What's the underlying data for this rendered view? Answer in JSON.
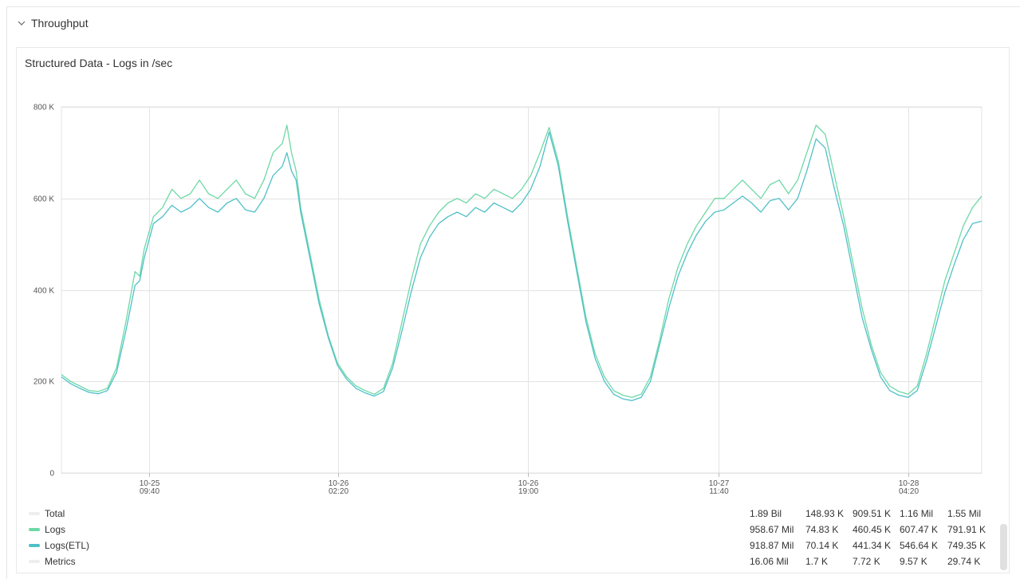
{
  "section": {
    "title": "Throughput"
  },
  "panel": {
    "title": "Structured Data - Logs in /sec"
  },
  "legend": {
    "rows": [
      {
        "label": "Total",
        "color": "#eeeeee",
        "values": [
          "1.89 Bil",
          "148.93 K",
          "909.51 K",
          "1.16 Mil",
          "1.55 Mil"
        ]
      },
      {
        "label": "Logs",
        "color": "#6dd8a6",
        "values": [
          "958.67 Mil",
          "74.83 K",
          "460.45 K",
          "607.47 K",
          "791.91 K"
        ]
      },
      {
        "label": "Logs(ETL)",
        "color": "#4fc0c8",
        "values": [
          "918.87 Mil",
          "70.14 K",
          "441.34 K",
          "546.64 K",
          "749.35 K"
        ]
      },
      {
        "label": "Metrics",
        "color": "#eeeeee",
        "values": [
          "16.06 Mil",
          "1.7 K",
          "7.72 K",
          "9.57 K",
          "29.74 K"
        ]
      }
    ]
  },
  "chart_data": {
    "type": "line",
    "title": "Structured Data - Logs in /sec",
    "xlabel": "",
    "ylabel": "",
    "ylim": [
      0,
      800000
    ],
    "yticks": [
      {
        "value": 0,
        "label": "0"
      },
      {
        "value": 200000,
        "label": "200 K"
      },
      {
        "value": 400000,
        "label": "400 K"
      },
      {
        "value": 600000,
        "label": "600 K"
      },
      {
        "value": 800000,
        "label": "800 K"
      }
    ],
    "xlim": [
      0,
      100
    ],
    "xticks": [
      {
        "x": 9.5,
        "date": "10-25",
        "time": "09:40"
      },
      {
        "x": 30.1,
        "date": "10-26",
        "time": "02:20"
      },
      {
        "x": 50.7,
        "date": "10-26",
        "time": "19:00"
      },
      {
        "x": 71.4,
        "date": "10-27",
        "time": "11:40"
      },
      {
        "x": 92.0,
        "date": "10-28",
        "time": "04:20"
      }
    ],
    "grid": true,
    "series": [
      {
        "name": "Logs",
        "color": "#6dd8a6",
        "points": [
          [
            0,
            215000
          ],
          [
            1,
            200000
          ],
          [
            2,
            190000
          ],
          [
            3,
            180000
          ],
          [
            4,
            178000
          ],
          [
            5,
            185000
          ],
          [
            6,
            230000
          ],
          [
            7,
            330000
          ],
          [
            8,
            440000
          ],
          [
            8.5,
            430000
          ],
          [
            9,
            490000
          ],
          [
            10,
            560000
          ],
          [
            11,
            580000
          ],
          [
            12,
            620000
          ],
          [
            13,
            600000
          ],
          [
            14,
            610000
          ],
          [
            15,
            640000
          ],
          [
            16,
            610000
          ],
          [
            17,
            600000
          ],
          [
            18,
            620000
          ],
          [
            19,
            640000
          ],
          [
            20,
            610000
          ],
          [
            21,
            600000
          ],
          [
            22,
            640000
          ],
          [
            23,
            700000
          ],
          [
            24,
            720000
          ],
          [
            24.5,
            760000
          ],
          [
            25,
            700000
          ],
          [
            25.5,
            660000
          ],
          [
            26,
            580000
          ],
          [
            27,
            480000
          ],
          [
            28,
            380000
          ],
          [
            29,
            300000
          ],
          [
            30,
            240000
          ],
          [
            31,
            210000
          ],
          [
            32,
            190000
          ],
          [
            33,
            180000
          ],
          [
            34,
            172000
          ],
          [
            35,
            185000
          ],
          [
            36,
            240000
          ],
          [
            37,
            330000
          ],
          [
            38,
            420000
          ],
          [
            39,
            500000
          ],
          [
            40,
            540000
          ],
          [
            41,
            570000
          ],
          [
            42,
            590000
          ],
          [
            43,
            600000
          ],
          [
            44,
            590000
          ],
          [
            45,
            610000
          ],
          [
            46,
            600000
          ],
          [
            47,
            620000
          ],
          [
            48,
            610000
          ],
          [
            49,
            600000
          ],
          [
            50,
            620000
          ],
          [
            51,
            650000
          ],
          [
            52,
            700000
          ],
          [
            53,
            755000
          ],
          [
            54,
            680000
          ],
          [
            55,
            560000
          ],
          [
            56,
            450000
          ],
          [
            57,
            340000
          ],
          [
            58,
            260000
          ],
          [
            59,
            210000
          ],
          [
            60,
            180000
          ],
          [
            61,
            170000
          ],
          [
            62,
            165000
          ],
          [
            63,
            172000
          ],
          [
            64,
            210000
          ],
          [
            65,
            290000
          ],
          [
            66,
            380000
          ],
          [
            67,
            450000
          ],
          [
            68,
            500000
          ],
          [
            69,
            540000
          ],
          [
            70,
            570000
          ],
          [
            71,
            600000
          ],
          [
            72,
            600000
          ],
          [
            73,
            620000
          ],
          [
            74,
            640000
          ],
          [
            75,
            620000
          ],
          [
            76,
            600000
          ],
          [
            77,
            630000
          ],
          [
            78,
            640000
          ],
          [
            79,
            610000
          ],
          [
            80,
            640000
          ],
          [
            81,
            700000
          ],
          [
            82,
            760000
          ],
          [
            83,
            740000
          ],
          [
            84,
            650000
          ],
          [
            85,
            560000
          ],
          [
            86,
            460000
          ],
          [
            87,
            360000
          ],
          [
            88,
            280000
          ],
          [
            89,
            220000
          ],
          [
            90,
            190000
          ],
          [
            91,
            178000
          ],
          [
            92,
            172000
          ],
          [
            93,
            190000
          ],
          [
            94,
            260000
          ],
          [
            95,
            340000
          ],
          [
            96,
            420000
          ],
          [
            97,
            480000
          ],
          [
            98,
            540000
          ],
          [
            99,
            580000
          ],
          [
            100,
            605000
          ]
        ]
      },
      {
        "name": "Logs(ETL)",
        "color": "#4fc0c8",
        "points": [
          [
            0,
            210000
          ],
          [
            1,
            195000
          ],
          [
            2,
            185000
          ],
          [
            3,
            176000
          ],
          [
            4,
            173000
          ],
          [
            5,
            180000
          ],
          [
            6,
            220000
          ],
          [
            7,
            310000
          ],
          [
            8,
            410000
          ],
          [
            8.5,
            420000
          ],
          [
            9,
            470000
          ],
          [
            10,
            545000
          ],
          [
            11,
            560000
          ],
          [
            12,
            585000
          ],
          [
            13,
            570000
          ],
          [
            14,
            580000
          ],
          [
            15,
            600000
          ],
          [
            16,
            580000
          ],
          [
            17,
            570000
          ],
          [
            18,
            590000
          ],
          [
            19,
            600000
          ],
          [
            20,
            575000
          ],
          [
            21,
            570000
          ],
          [
            22,
            600000
          ],
          [
            23,
            650000
          ],
          [
            24,
            670000
          ],
          [
            24.5,
            700000
          ],
          [
            25,
            660000
          ],
          [
            25.5,
            640000
          ],
          [
            26,
            570000
          ],
          [
            27,
            470000
          ],
          [
            28,
            370000
          ],
          [
            29,
            295000
          ],
          [
            30,
            235000
          ],
          [
            31,
            205000
          ],
          [
            32,
            185000
          ],
          [
            33,
            175000
          ],
          [
            34,
            168000
          ],
          [
            35,
            178000
          ],
          [
            36,
            230000
          ],
          [
            37,
            310000
          ],
          [
            38,
            395000
          ],
          [
            39,
            470000
          ],
          [
            40,
            515000
          ],
          [
            41,
            545000
          ],
          [
            42,
            560000
          ],
          [
            43,
            570000
          ],
          [
            44,
            560000
          ],
          [
            45,
            580000
          ],
          [
            46,
            570000
          ],
          [
            47,
            590000
          ],
          [
            48,
            580000
          ],
          [
            49,
            570000
          ],
          [
            50,
            590000
          ],
          [
            51,
            620000
          ],
          [
            52,
            670000
          ],
          [
            53,
            745000
          ],
          [
            54,
            670000
          ],
          [
            55,
            550000
          ],
          [
            56,
            440000
          ],
          [
            57,
            330000
          ],
          [
            58,
            250000
          ],
          [
            59,
            200000
          ],
          [
            60,
            172000
          ],
          [
            61,
            162000
          ],
          [
            62,
            158000
          ],
          [
            63,
            165000
          ],
          [
            64,
            200000
          ],
          [
            65,
            280000
          ],
          [
            66,
            360000
          ],
          [
            67,
            430000
          ],
          [
            68,
            480000
          ],
          [
            69,
            520000
          ],
          [
            70,
            550000
          ],
          [
            71,
            570000
          ],
          [
            72,
            575000
          ],
          [
            73,
            590000
          ],
          [
            74,
            605000
          ],
          [
            75,
            590000
          ],
          [
            76,
            570000
          ],
          [
            77,
            595000
          ],
          [
            78,
            600000
          ],
          [
            79,
            575000
          ],
          [
            80,
            600000
          ],
          [
            81,
            660000
          ],
          [
            82,
            730000
          ],
          [
            83,
            710000
          ],
          [
            84,
            620000
          ],
          [
            85,
            540000
          ],
          [
            86,
            440000
          ],
          [
            87,
            340000
          ],
          [
            88,
            270000
          ],
          [
            89,
            210000
          ],
          [
            90,
            180000
          ],
          [
            91,
            170000
          ],
          [
            92,
            165000
          ],
          [
            93,
            180000
          ],
          [
            94,
            245000
          ],
          [
            95,
            320000
          ],
          [
            96,
            395000
          ],
          [
            97,
            455000
          ],
          [
            98,
            510000
          ],
          [
            99,
            545000
          ],
          [
            100,
            550000
          ]
        ]
      }
    ]
  }
}
